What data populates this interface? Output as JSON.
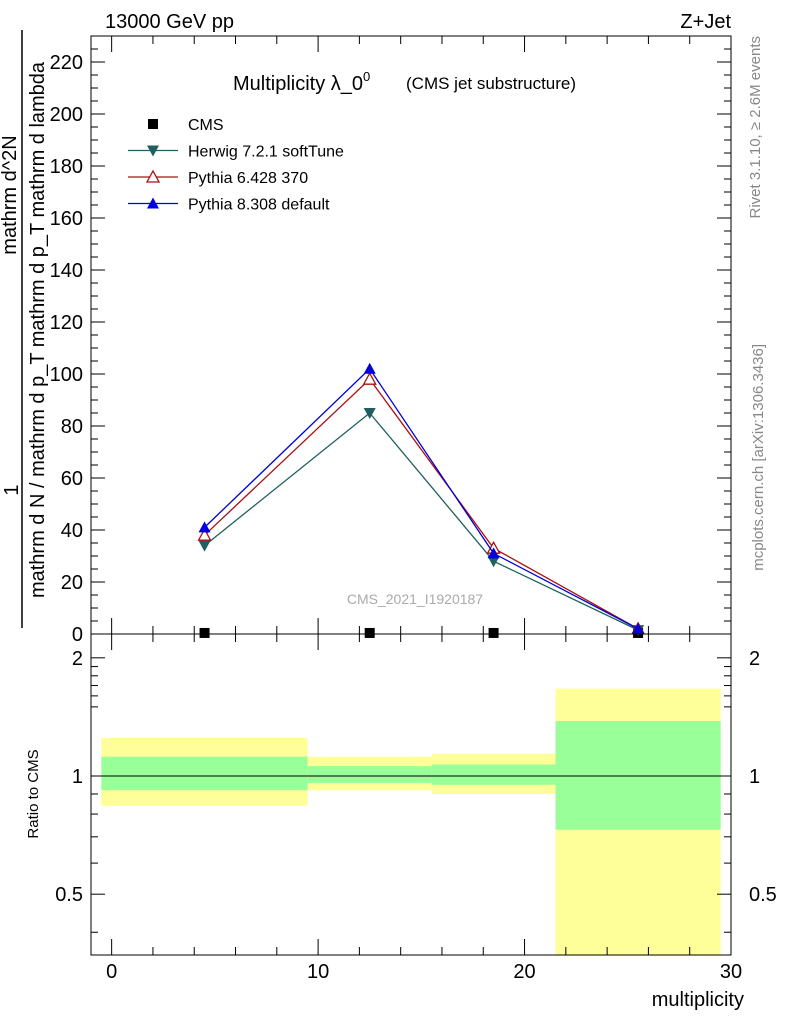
{
  "header": {
    "left": "13000 GeV pp",
    "right": "Z+Jet"
  },
  "side_labels": {
    "rivet": "Rivet 3.1.10, ≥ 2.6M events",
    "mcplots": "mcplots.cern.ch [arXiv:1306.3436]"
  },
  "colors": {
    "cms": "#000000",
    "herwig": "#1f5f5f",
    "pythia6": "#aa1111",
    "pythia8": "#0000dd",
    "band_outer": "#ffff99",
    "band_inner": "#99ff99"
  },
  "chart_data": [
    {
      "type": "line",
      "title_main": "Multiplicity λ_0",
      "title_sup": "0",
      "title_sub": "(CMS jet substructure)",
      "watermark": "CMS_2021_I1920187",
      "ylabel_num": "1",
      "ylabel_den_top": "mathrm d^2N",
      "ylabel_den_main": "mathrm d N / mathrm d p_T mathrm d p_T mathrm d lambda",
      "ylabel_full": "mathrm d N / mathrm d p_T mathrm d p_T mathrm d lambda mathrm d^2N",
      "xlim": [
        -1,
        30
      ],
      "ylim": [
        0,
        230
      ],
      "yticks": [
        0,
        20,
        40,
        60,
        80,
        100,
        120,
        140,
        160,
        180,
        200,
        220
      ],
      "ytick_labels": [
        "0",
        "20",
        "40",
        "60",
        "80",
        "100",
        "120",
        "140",
        "160",
        "180",
        "200",
        "220"
      ],
      "legend_position": "top-left",
      "series": [
        {
          "name": "CMS",
          "marker": "square",
          "x": [
            4.5,
            12.5,
            18.5,
            25.5
          ],
          "y": [
            0.4,
            0.4,
            0.4,
            0.4
          ]
        },
        {
          "name": "Herwig 7.2.1 softTune",
          "marker": "triangle-down",
          "x": [
            4.5,
            12.5,
            18.5,
            25.5
          ],
          "y": [
            34,
            85,
            28,
            1.5
          ]
        },
        {
          "name": "Pythia 6.428 370",
          "marker": "triangle-up-open",
          "x": [
            4.5,
            12.5,
            18.5,
            25.5
          ],
          "y": [
            38,
            98,
            33,
            2
          ]
        },
        {
          "name": "Pythia 8.308 default",
          "marker": "triangle-up",
          "x": [
            4.5,
            12.5,
            18.5,
            25.5
          ],
          "y": [
            41,
            102,
            31,
            2
          ]
        }
      ]
    },
    {
      "type": "area",
      "ylabel": "Ratio to CMS",
      "xlabel": "multiplicity",
      "xlim": [
        -1,
        30
      ],
      "ylim": [
        0.35,
        2.3
      ],
      "yscale": "log",
      "xticks": [
        0,
        10,
        20,
        30
      ],
      "xtick_labels": [
        "0",
        "10",
        "20",
        "30"
      ],
      "yticks": [
        0.5,
        1,
        2
      ],
      "ytick_labels": [
        "0.5",
        "1",
        "2"
      ],
      "bins": [
        {
          "xlow": -0.5,
          "xhigh": 9.5,
          "outer_low": 0.84,
          "outer_high": 1.25,
          "inner_low": 0.92,
          "inner_high": 1.12
        },
        {
          "xlow": 9.5,
          "xhigh": 15.5,
          "outer_low": 0.92,
          "outer_high": 1.12,
          "inner_low": 0.96,
          "inner_high": 1.06
        },
        {
          "xlow": 15.5,
          "xhigh": 21.5,
          "outer_low": 0.9,
          "outer_high": 1.14,
          "inner_low": 0.95,
          "inner_high": 1.07
        },
        {
          "xlow": 21.5,
          "xhigh": 29.5,
          "outer_low": 0.35,
          "outer_high": 1.67,
          "inner_low": 0.73,
          "inner_high": 1.38
        }
      ]
    }
  ]
}
